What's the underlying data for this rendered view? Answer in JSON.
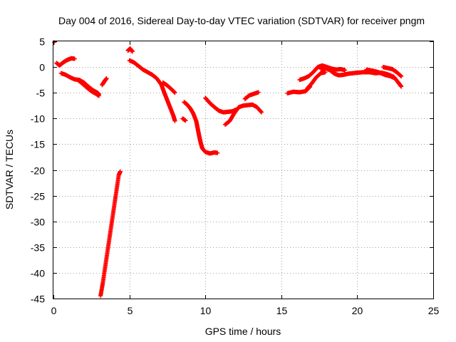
{
  "chart_data": {
    "type": "scatter",
    "title": "Day 004 of 2016, Sidereal Day-to-day VTEC variation (SDTVAR) for receiver pngm",
    "xlabel": "GPS time / hours",
    "ylabel": "SDTVAR / TECUs",
    "xlim": [
      0,
      25
    ],
    "ylim": [
      -45,
      5
    ],
    "xticks": [
      0,
      5,
      10,
      15,
      20,
      25
    ],
    "yticks": [
      5,
      0,
      -5,
      -10,
      -15,
      -20,
      -25,
      -30,
      -35,
      -40,
      -45
    ],
    "grid": true,
    "marker": "+",
    "color": "#ff0000",
    "series": [
      {
        "name": "seg01",
        "points": [
          [
            0.05,
            4.8
          ]
        ]
      },
      {
        "name": "seg02",
        "points": [
          [
            0.2,
            0.8
          ],
          [
            0.4,
            0.3
          ],
          [
            0.6,
            0.8
          ],
          [
            0.8,
            1.2
          ],
          [
            1.0,
            1.5
          ],
          [
            1.2,
            1.7
          ],
          [
            1.4,
            1.6
          ]
        ]
      },
      {
        "name": "seg03",
        "points": [
          [
            0.5,
            -1.2
          ],
          [
            0.8,
            -1.5
          ],
          [
            1.1,
            -2.0
          ],
          [
            1.4,
            -2.4
          ],
          [
            1.7,
            -2.5
          ],
          [
            2.0,
            -3.0
          ],
          [
            2.3,
            -3.8
          ],
          [
            2.6,
            -4.5
          ],
          [
            2.9,
            -5.0
          ],
          [
            3.0,
            -5.3
          ]
        ]
      },
      {
        "name": "seg04",
        "points": [
          [
            1.6,
            -2.5
          ],
          [
            1.9,
            -3.2
          ],
          [
            2.2,
            -4.0
          ],
          [
            2.5,
            -4.7
          ],
          [
            2.8,
            -5.2
          ],
          [
            3.0,
            -5.6
          ]
        ]
      },
      {
        "name": "seg05",
        "points": [
          [
            3.2,
            -3.5
          ],
          [
            3.35,
            -2.8
          ],
          [
            3.5,
            -2.2
          ]
        ]
      },
      {
        "name": "seg06",
        "points": [
          [
            3.1,
            -44.5
          ],
          [
            3.25,
            -42.0
          ],
          [
            3.4,
            -39.0
          ],
          [
            3.55,
            -36.0
          ],
          [
            3.7,
            -33.0
          ],
          [
            3.85,
            -30.0
          ],
          [
            4.0,
            -27.0
          ],
          [
            4.15,
            -24.0
          ],
          [
            4.3,
            -21.0
          ],
          [
            4.4,
            -20.3
          ]
        ]
      },
      {
        "name": "seg07",
        "points": [
          [
            4.9,
            3.2
          ],
          [
            5.05,
            3.6
          ],
          [
            5.2,
            3.0
          ]
        ]
      },
      {
        "name": "seg08",
        "points": [
          [
            5.0,
            1.3
          ],
          [
            5.3,
            0.9
          ],
          [
            5.6,
            0.2
          ],
          [
            5.9,
            -0.5
          ],
          [
            6.2,
            -1.0
          ],
          [
            6.5,
            -1.5
          ],
          [
            6.8,
            -2.2
          ],
          [
            7.1,
            -3.4
          ],
          [
            7.3,
            -5.0
          ],
          [
            7.5,
            -6.5
          ],
          [
            7.7,
            -8.0
          ],
          [
            7.9,
            -9.5
          ],
          [
            8.0,
            -10.5
          ]
        ]
      },
      {
        "name": "seg09",
        "points": [
          [
            7.2,
            -3.0
          ],
          [
            7.5,
            -3.6
          ],
          [
            7.8,
            -4.4
          ],
          [
            8.0,
            -5.0
          ]
        ]
      },
      {
        "name": "seg10",
        "points": [
          [
            8.5,
            -10.0
          ],
          [
            8.7,
            -10.4
          ]
        ]
      },
      {
        "name": "seg11",
        "points": [
          [
            8.6,
            -6.8
          ],
          [
            8.8,
            -7.3
          ],
          [
            9.0,
            -8.0
          ],
          [
            9.2,
            -9.0
          ],
          [
            9.4,
            -10.5
          ],
          [
            9.5,
            -12.0
          ],
          [
            9.6,
            -13.5
          ],
          [
            9.7,
            -14.8
          ],
          [
            9.8,
            -15.8
          ],
          [
            10.0,
            -16.5
          ],
          [
            10.3,
            -16.8
          ],
          [
            10.6,
            -16.6
          ],
          [
            10.8,
            -16.7
          ]
        ]
      },
      {
        "name": "seg12",
        "points": [
          [
            10.0,
            -6.0
          ],
          [
            10.3,
            -7.0
          ],
          [
            10.6,
            -7.8
          ],
          [
            10.9,
            -8.5
          ],
          [
            11.2,
            -8.8
          ],
          [
            11.5,
            -8.7
          ],
          [
            11.8,
            -8.6
          ],
          [
            12.0,
            -8.3
          ]
        ]
      },
      {
        "name": "seg13",
        "points": [
          [
            11.3,
            -11.2
          ],
          [
            11.6,
            -10.5
          ],
          [
            11.9,
            -9.0
          ],
          [
            12.2,
            -7.8
          ],
          [
            12.5,
            -7.5
          ],
          [
            12.8,
            -7.4
          ],
          [
            13.1,
            -7.3
          ],
          [
            13.4,
            -7.8
          ],
          [
            13.7,
            -8.8
          ]
        ]
      },
      {
        "name": "seg14",
        "points": [
          [
            12.6,
            -6.2
          ],
          [
            12.9,
            -5.5
          ],
          [
            13.2,
            -5.2
          ],
          [
            13.5,
            -4.9
          ]
        ]
      },
      {
        "name": "seg15",
        "points": [
          [
            15.4,
            -5.1
          ],
          [
            15.8,
            -4.8
          ],
          [
            16.2,
            -4.9
          ],
          [
            16.6,
            -4.7
          ],
          [
            16.9,
            -3.8
          ]
        ]
      },
      {
        "name": "seg16",
        "points": [
          [
            16.2,
            -2.5
          ],
          [
            16.5,
            -2.2
          ],
          [
            16.8,
            -1.8
          ],
          [
            17.1,
            -1.0
          ],
          [
            17.4,
            0.0
          ],
          [
            17.7,
            0.3
          ],
          [
            18.0,
            0.0
          ],
          [
            18.3,
            -0.3
          ],
          [
            18.6,
            -0.5
          ],
          [
            18.9,
            -0.4
          ],
          [
            19.2,
            -0.6
          ]
        ]
      },
      {
        "name": "seg17",
        "points": [
          [
            16.7,
            -4.2
          ],
          [
            17.0,
            -3.2
          ],
          [
            17.3,
            -2.0
          ],
          [
            17.6,
            -1.2
          ],
          [
            17.9,
            -1.0
          ]
        ]
      },
      {
        "name": "seg18",
        "points": [
          [
            17.6,
            -0.4
          ],
          [
            17.9,
            -0.2
          ],
          [
            18.2,
            -0.6
          ],
          [
            18.5,
            -1.3
          ],
          [
            18.8,
            -1.6
          ],
          [
            19.1,
            -1.5
          ],
          [
            19.4,
            -1.3
          ],
          [
            19.7,
            -1.2
          ],
          [
            20.0,
            -1.1
          ],
          [
            20.4,
            -1.0
          ],
          [
            20.8,
            -1.0
          ],
          [
            21.2,
            -1.2
          ],
          [
            21.6,
            -1.1
          ],
          [
            22.0,
            -1.4
          ],
          [
            22.4,
            -1.9
          ],
          [
            22.7,
            -3.0
          ],
          [
            22.9,
            -3.8
          ]
        ]
      },
      {
        "name": "seg19",
        "points": [
          [
            20.6,
            -0.5
          ],
          [
            21.0,
            -0.7
          ],
          [
            21.4,
            -1.0
          ],
          [
            21.8,
            -1.5
          ],
          [
            22.2,
            -1.8
          ],
          [
            22.5,
            -2.2
          ]
        ]
      },
      {
        "name": "seg20",
        "points": [
          [
            21.7,
            0.0
          ],
          [
            22.0,
            -0.2
          ],
          [
            22.3,
            -0.4
          ],
          [
            22.6,
            -1.0
          ],
          [
            22.9,
            -1.8
          ]
        ]
      }
    ]
  }
}
